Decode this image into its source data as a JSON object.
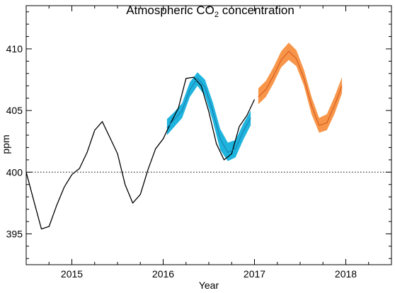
{
  "chart_data": {
    "type": "line",
    "title_prefix": "Atmospheric CO",
    "title_subscript": "2",
    "title_suffix": " concentration",
    "xlabel": "Year",
    "ylabel": "ppm",
    "xlim": [
      2014.5,
      2018.5
    ],
    "ylim": [
      392.5,
      413.5
    ],
    "x_ticks": [
      2015,
      2016,
      2017,
      2018
    ],
    "y_ticks": [
      395,
      400,
      405,
      410
    ],
    "reference_line": {
      "y": 400,
      "style": "dotted"
    },
    "colors": {
      "observed": "#000000",
      "hindcast_band": "#1fb4de",
      "hindcast_line": "#1a7fb0",
      "forecast_band": "#f7964a",
      "forecast_line": "#d9581e"
    },
    "series": [
      {
        "kind": "observed",
        "x": [
          2014.5,
          2014.583,
          2014.667,
          2014.75,
          2014.833,
          2014.917,
          2015.0,
          2015.083,
          2015.167,
          2015.25,
          2015.333,
          2015.417,
          2015.5,
          2015.583,
          2015.667,
          2015.75,
          2015.833,
          2015.917,
          2016.0,
          2016.083,
          2016.167,
          2016.25,
          2016.333,
          2016.417,
          2016.5,
          2016.583,
          2016.667,
          2016.75,
          2016.833,
          2016.917,
          2017.0
        ],
        "y": [
          400.0,
          397.7,
          395.4,
          395.6,
          397.3,
          398.8,
          399.8,
          400.3,
          401.6,
          403.4,
          404.1,
          402.8,
          401.5,
          399.0,
          397.5,
          398.2,
          400.2,
          401.9,
          402.7,
          404.0,
          405.2,
          407.6,
          407.7,
          407.0,
          404.9,
          402.3,
          401.0,
          401.5,
          403.7,
          404.6,
          405.9
        ]
      },
      {
        "kind": "hindcast",
        "x": [
          2016.042,
          2016.125,
          2016.208,
          2016.292,
          2016.375,
          2016.458,
          2016.542,
          2016.625,
          2016.708,
          2016.792,
          2016.875,
          2016.958
        ],
        "y": [
          403.6,
          404.3,
          405.0,
          406.7,
          407.6,
          406.9,
          405.0,
          402.7,
          401.6,
          401.9,
          403.3,
          404.4
        ],
        "lower": [
          403.0,
          403.7,
          404.4,
          406.1,
          407.0,
          406.2,
          404.2,
          401.8,
          400.9,
          401.2,
          402.6,
          403.8
        ],
        "upper": [
          404.3,
          404.9,
          405.6,
          407.3,
          408.1,
          407.5,
          405.7,
          403.5,
          402.4,
          402.6,
          403.9,
          405.0
        ]
      },
      {
        "kind": "forecast",
        "x": [
          2017.042,
          2017.125,
          2017.208,
          2017.292,
          2017.375,
          2017.458,
          2017.542,
          2017.625,
          2017.708,
          2017.792,
          2017.875,
          2017.958
        ],
        "y": [
          406.1,
          406.7,
          407.8,
          409.1,
          409.8,
          409.2,
          407.6,
          405.4,
          403.8,
          404.0,
          405.4,
          407.0
        ],
        "lower": [
          405.5,
          406.1,
          407.2,
          408.5,
          409.1,
          408.6,
          407.0,
          404.7,
          403.2,
          403.4,
          404.7,
          406.4
        ],
        "upper": [
          406.8,
          407.4,
          408.5,
          409.8,
          410.5,
          409.9,
          408.3,
          406.1,
          404.4,
          404.7,
          406.1,
          407.7
        ]
      }
    ]
  }
}
